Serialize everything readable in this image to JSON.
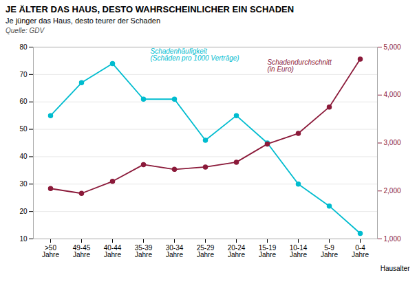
{
  "chart_data": {
    "type": "line",
    "title": "JE ÄLTER DAS HAUS, DESTO WAHRSCHEINLICHER EIN SCHADEN",
    "subtitle": "Je jünger das Haus, desto teurer der Schaden",
    "source": "Quelle: GDV",
    "xlabel": "Hausalter",
    "categories": [
      ">50\nJahre",
      "49-45\nJahre",
      "40-44\nJahre",
      "35-39\nJahre",
      "30-34\nJahre",
      "25-29\nJahre",
      "20-24\nJahre",
      "15-19\nJahre",
      "10-14\nJahre",
      "5-9\nJahre",
      "0-4\nJahre"
    ],
    "series": [
      {
        "name": "Schadenhäufigkeit\n(Schäden pro 1000 Verträge)",
        "color": "#00BCCF",
        "marker": "circle",
        "values": [
          55,
          67,
          74,
          61,
          61,
          46,
          55,
          45,
          30,
          22,
          12
        ]
      },
      {
        "name": "Schadendurchschnitt\n(in Euro)",
        "color": "#8B1A3A",
        "marker": "circle",
        "axis": "y2",
        "values": [
          2050,
          1950,
          2200,
          2550,
          2450,
          2500,
          2600,
          2980,
          3200,
          3750,
          4750
        ]
      }
    ],
    "ylim": [
      10,
      80
    ],
    "yticks": [
      10,
      20,
      30,
      40,
      50,
      60,
      70,
      80
    ],
    "y2lim": [
      1000,
      5000
    ],
    "y2ticks": [
      1000,
      2000,
      3000,
      4000,
      5000
    ],
    "grid": true
  }
}
